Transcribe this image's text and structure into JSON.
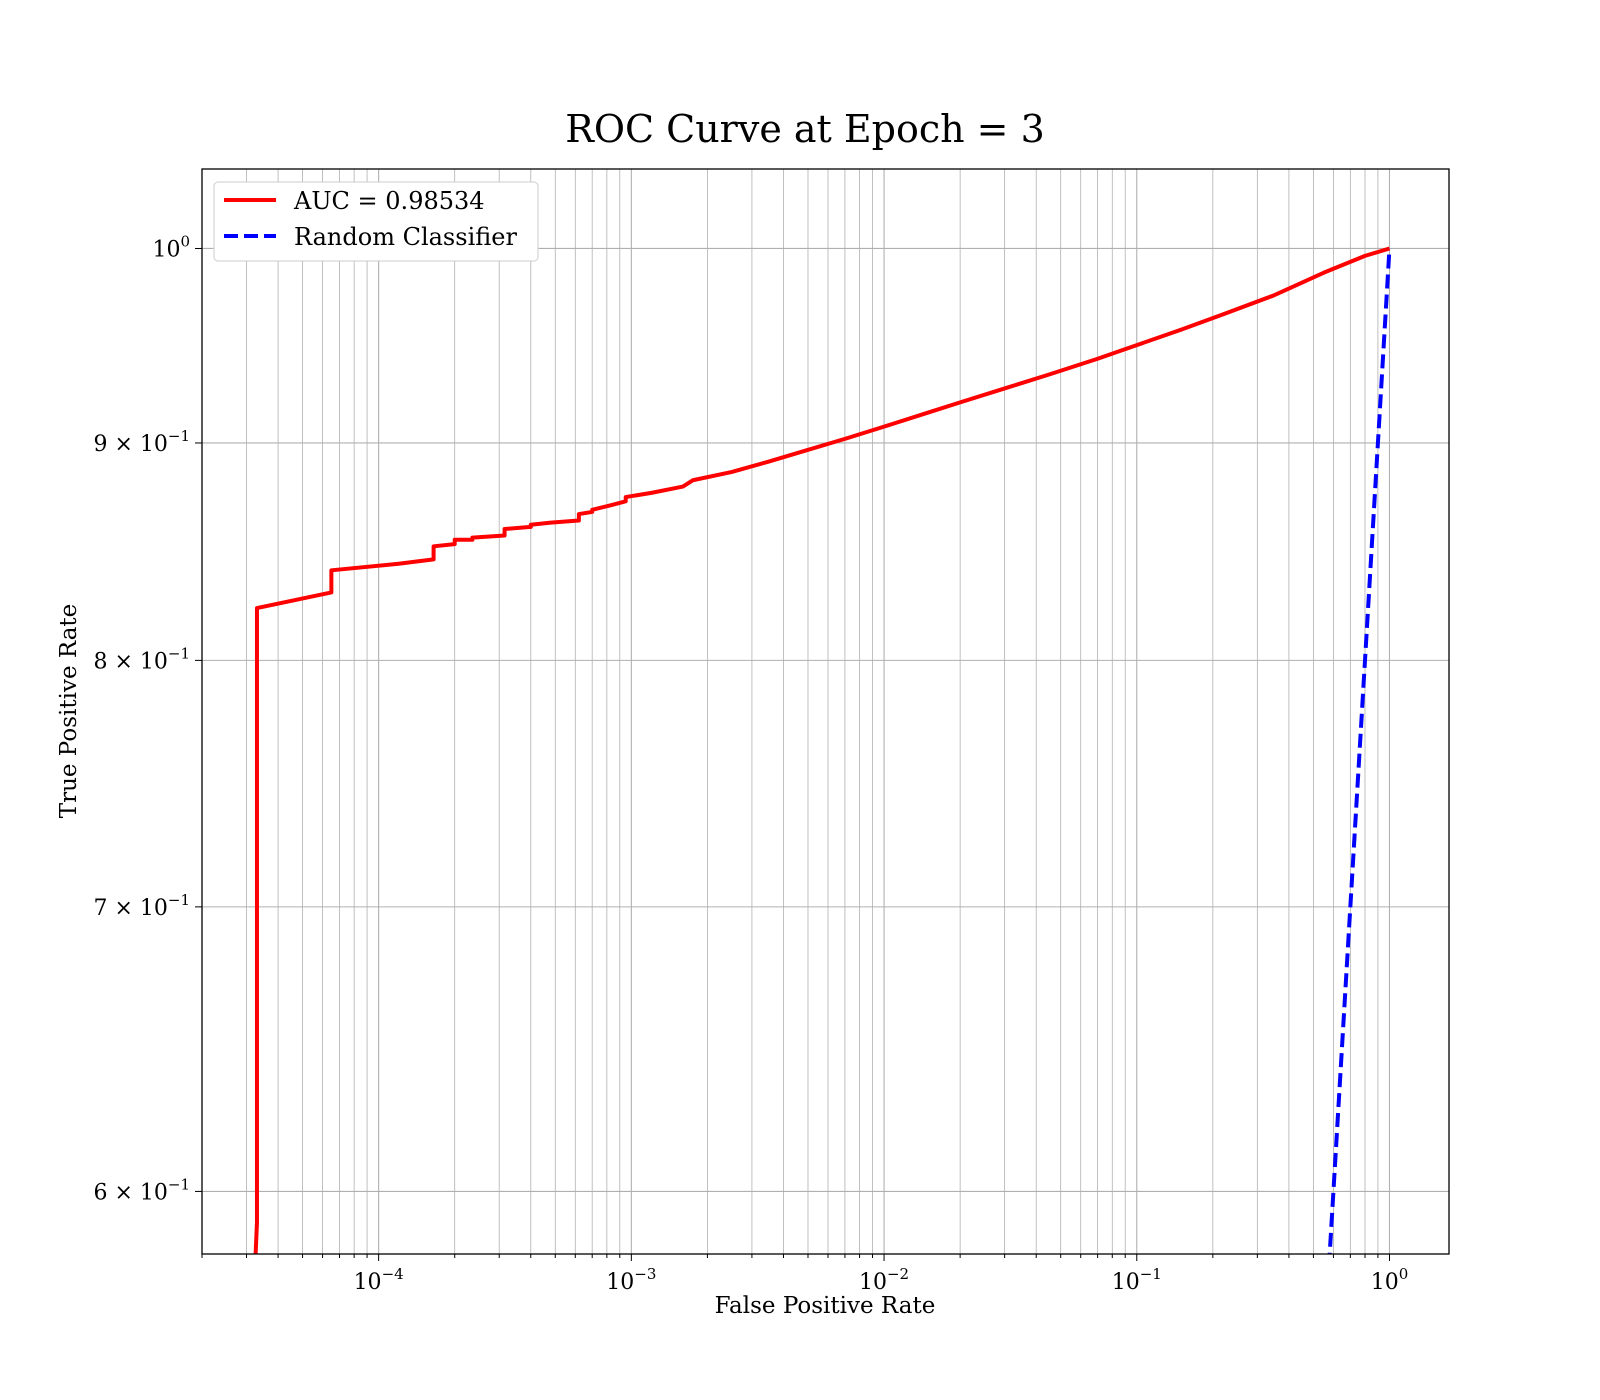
{
  "chart_data": {
    "type": "line",
    "title": "ROC Curve at Epoch = 3",
    "xlabel": "False Positive Rate",
    "ylabel": "True Positive Rate",
    "xscale": "log",
    "yscale": "log",
    "xlim": [
      2e-05,
      1.72
    ],
    "ylim": [
      0.58,
      1.044
    ],
    "grid": true,
    "legend_position": "upper-left",
    "x_ticks": [
      {
        "value": 0.0001,
        "base": "10",
        "exp": "−4"
      },
      {
        "value": 0.001,
        "base": "10",
        "exp": "−3"
      },
      {
        "value": 0.01,
        "base": "10",
        "exp": "−2"
      },
      {
        "value": 0.1,
        "base": "10",
        "exp": "−1"
      },
      {
        "value": 1,
        "base": "10",
        "exp": "0"
      }
    ],
    "y_ticks": [
      {
        "value": 1.0,
        "mant": "",
        "base": "10",
        "exp": "0"
      },
      {
        "value": 0.9,
        "mant": "9 × ",
        "base": "10",
        "exp": "−1"
      },
      {
        "value": 0.8,
        "mant": "8 × ",
        "base": "10",
        "exp": "−1"
      },
      {
        "value": 0.7,
        "mant": "7 × ",
        "base": "10",
        "exp": "−1"
      },
      {
        "value": 0.6,
        "mant": "6 × ",
        "base": "10",
        "exp": "−1"
      }
    ],
    "series": [
      {
        "name": "AUC = 0.98534",
        "color": "#ff0000",
        "style": "solid",
        "points": [
          [
            3.24e-05,
            0.575
          ],
          [
            3.3e-05,
            0.59
          ],
          [
            3.3e-05,
            0.823
          ],
          [
            6.5e-05,
            0.83
          ],
          [
            6.5e-05,
            0.84
          ],
          [
            0.00012,
            0.843
          ],
          [
            0.000165,
            0.845
          ],
          [
            0.000165,
            0.851
          ],
          [
            0.0002,
            0.852
          ],
          [
            0.0002,
            0.854
          ],
          [
            0.000235,
            0.854
          ],
          [
            0.000235,
            0.855
          ],
          [
            0.000315,
            0.856
          ],
          [
            0.000315,
            0.859
          ],
          [
            0.0004,
            0.86
          ],
          [
            0.0004,
            0.861
          ],
          [
            0.00048,
            0.862
          ],
          [
            0.00062,
            0.863
          ],
          [
            0.00062,
            0.866
          ],
          [
            0.0007,
            0.867
          ],
          [
            0.0007,
            0.868
          ],
          [
            0.00082,
            0.87
          ],
          [
            0.00095,
            0.872
          ],
          [
            0.00095,
            0.874
          ],
          [
            0.0012,
            0.876
          ],
          [
            0.0016,
            0.879
          ],
          [
            0.00175,
            0.882
          ],
          [
            0.0025,
            0.886
          ],
          [
            0.0035,
            0.891
          ],
          [
            0.0048,
            0.896
          ],
          [
            0.007,
            0.902
          ],
          [
            0.01,
            0.908
          ],
          [
            0.015,
            0.915
          ],
          [
            0.02,
            0.92
          ],
          [
            0.03,
            0.927
          ],
          [
            0.045,
            0.934
          ],
          [
            0.07,
            0.942
          ],
          [
            0.1,
            0.949
          ],
          [
            0.15,
            0.957
          ],
          [
            0.22,
            0.965
          ],
          [
            0.35,
            0.975
          ],
          [
            0.55,
            0.987
          ],
          [
            0.8,
            0.996
          ],
          [
            1.0,
            1.0
          ]
        ]
      },
      {
        "name": "Random Classifier",
        "color": "#0000ff",
        "style": "dashed",
        "points": [
          [
            0.576,
            0.576
          ],
          [
            1.0,
            1.0
          ]
        ]
      }
    ]
  }
}
